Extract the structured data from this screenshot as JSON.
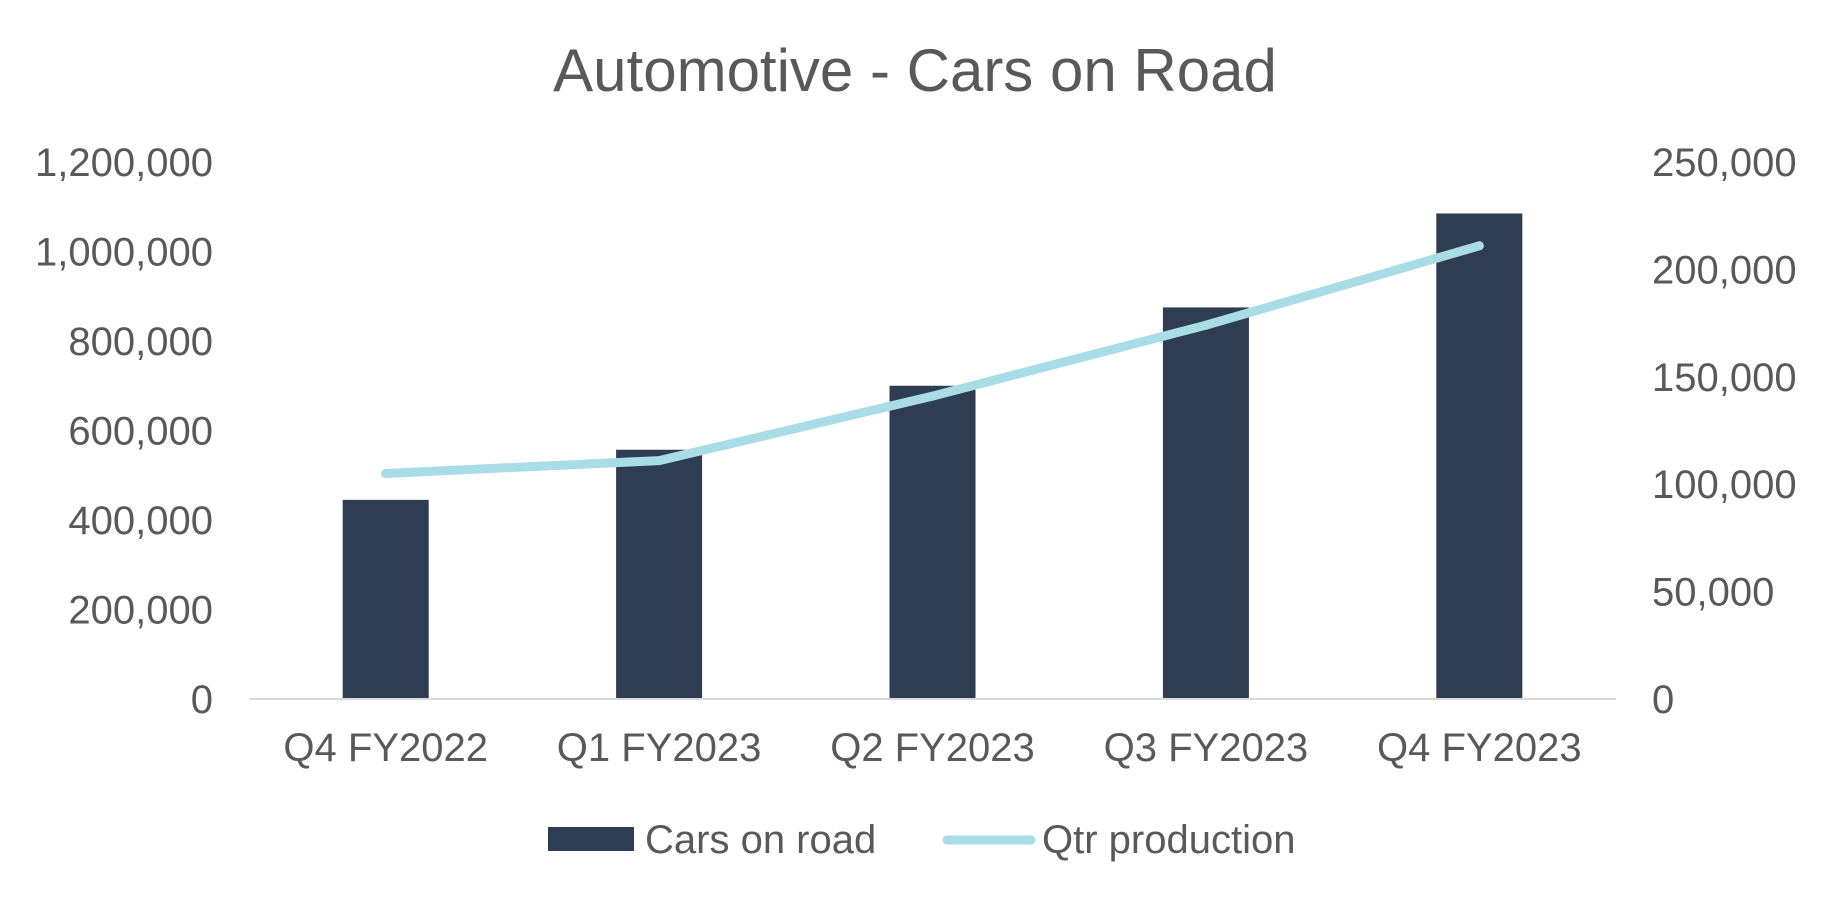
{
  "chart_data": {
    "type": "bar",
    "title": "Automotive - Cars on Road",
    "categories": [
      "Q4 FY2022",
      "Q1 FY2023",
      "Q2 FY2023",
      "Q3 FY2023",
      "Q4 FY2023"
    ],
    "series": [
      {
        "name": "Cars on road",
        "type": "bar",
        "axis": "left",
        "color": "#2e3c54",
        "values": [
          445000,
          557000,
          700000,
          875000,
          1085000
        ]
      },
      {
        "name": "Qtr production",
        "type": "line",
        "axis": "right",
        "color": "#a9dde6",
        "values": [
          105000,
          111000,
          141000,
          174000,
          211000
        ]
      }
    ],
    "y_left": {
      "range": [
        0,
        1200000
      ],
      "ticks": [
        0,
        200000,
        400000,
        600000,
        800000,
        1000000,
        1200000
      ],
      "tick_labels": [
        "0",
        "200,000",
        "400,000",
        "600,000",
        "800,000",
        "1,000,000",
        "1,200,000"
      ]
    },
    "y_right": {
      "range": [
        0,
        250000
      ],
      "ticks": [
        0,
        50000,
        100000,
        150000,
        200000,
        250000
      ],
      "tick_labels": [
        "0",
        "50,000",
        "100,000",
        "150,000",
        "200,000",
        "250,000"
      ]
    },
    "xlabel": "",
    "ylabel": "",
    "grid": false,
    "legend": "bottom"
  }
}
